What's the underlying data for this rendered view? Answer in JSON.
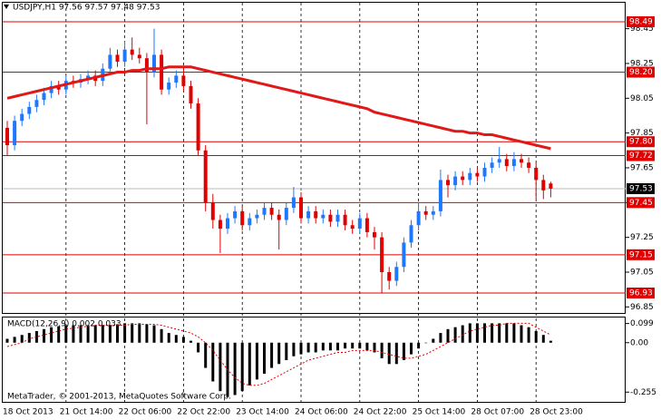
{
  "chart_data": [
    {
      "type": "candlestick",
      "title": "USDJPY,H1  97.56 97.57 97.48 97.53",
      "annotation": "MetaTrader, © 2001-2013, MetaQuotes Software Corp.",
      "categories": [
        "18 Oct 2013",
        null,
        null,
        null,
        null,
        null,
        null,
        null,
        "21 Oct 14:00",
        null,
        null,
        null,
        null,
        null,
        null,
        null,
        "22 Oct 06:00",
        null,
        null,
        null,
        null,
        null,
        null,
        null,
        "22 Oct 22:00",
        null,
        null,
        null,
        null,
        null,
        null,
        null,
        "23 Oct 14:00",
        null,
        null,
        null,
        null,
        null,
        null,
        null,
        "24 Oct 06:00",
        null,
        null,
        null,
        null,
        null,
        null,
        null,
        "24 Oct 22:00",
        null,
        null,
        null,
        null,
        null,
        null,
        null,
        "25 Oct 14:00",
        null,
        null,
        null,
        null,
        null,
        null,
        null,
        "28 Oct 07:00",
        null,
        null,
        null,
        null,
        null,
        null,
        null,
        "28 Oct 23:00",
        null,
        null
      ],
      "ohlc": [
        [
          97.88,
          97.92,
          97.72,
          97.78
        ],
        [
          97.78,
          97.95,
          97.75,
          97.92
        ],
        [
          97.92,
          97.99,
          97.89,
          97.96
        ],
        [
          97.96,
          98.03,
          97.93,
          98.0
        ],
        [
          98.0,
          98.07,
          97.97,
          98.04
        ],
        [
          98.04,
          98.11,
          98.01,
          98.08
        ],
        [
          98.08,
          98.15,
          98.05,
          98.12
        ],
        [
          98.12,
          98.15,
          98.07,
          98.1
        ],
        [
          98.1,
          98.18,
          98.07,
          98.15
        ],
        [
          98.15,
          98.18,
          98.11,
          98.14
        ],
        [
          98.14,
          98.19,
          98.11,
          98.16
        ],
        [
          98.16,
          98.21,
          98.13,
          98.18
        ],
        [
          98.18,
          98.21,
          98.12,
          98.15
        ],
        [
          98.15,
          98.25,
          98.12,
          98.22
        ],
        [
          98.22,
          98.34,
          98.19,
          98.3
        ],
        [
          98.3,
          98.33,
          98.23,
          98.26
        ],
        [
          98.26,
          98.38,
          98.23,
          98.33
        ],
        [
          98.33,
          98.4,
          98.27,
          98.3
        ],
        [
          98.3,
          98.34,
          98.25,
          98.28
        ],
        [
          98.28,
          98.31,
          97.9,
          98.2
        ],
        [
          98.2,
          98.45,
          98.17,
          98.3
        ],
        [
          98.3,
          98.33,
          98.07,
          98.1
        ],
        [
          98.1,
          98.17,
          98.07,
          98.14
        ],
        [
          98.14,
          98.21,
          98.11,
          98.18
        ],
        [
          98.18,
          98.22,
          98.09,
          98.12
        ],
        [
          98.12,
          98.15,
          97.99,
          98.02
        ],
        [
          98.02,
          98.05,
          97.72,
          97.75
        ],
        [
          97.75,
          97.78,
          97.4,
          97.45
        ],
        [
          97.45,
          97.5,
          97.3,
          97.35
        ],
        [
          97.35,
          97.38,
          97.16,
          97.3
        ],
        [
          97.3,
          97.39,
          97.27,
          97.36
        ],
        [
          97.36,
          97.43,
          97.33,
          97.4
        ],
        [
          97.4,
          97.43,
          97.29,
          97.32
        ],
        [
          97.32,
          97.39,
          97.29,
          97.36
        ],
        [
          97.36,
          97.41,
          97.33,
          97.38
        ],
        [
          97.38,
          97.45,
          97.35,
          97.42
        ],
        [
          97.42,
          97.45,
          97.35,
          97.38
        ],
        [
          97.38,
          97.41,
          97.18,
          97.35
        ],
        [
          97.35,
          97.45,
          97.32,
          97.42
        ],
        [
          97.42,
          97.54,
          97.39,
          97.48
        ],
        [
          97.48,
          97.51,
          97.33,
          97.36
        ],
        [
          97.36,
          97.43,
          97.33,
          97.4
        ],
        [
          97.4,
          97.43,
          97.33,
          97.36
        ],
        [
          97.36,
          97.41,
          97.33,
          97.38
        ],
        [
          97.38,
          97.41,
          97.31,
          97.34
        ],
        [
          97.34,
          97.41,
          97.31,
          97.38
        ],
        [
          97.38,
          97.41,
          97.29,
          97.32
        ],
        [
          97.32,
          97.35,
          97.27,
          97.3
        ],
        [
          97.3,
          97.39,
          97.27,
          97.36
        ],
        [
          97.36,
          97.39,
          97.25,
          97.28
        ],
        [
          97.28,
          97.31,
          97.18,
          97.25
        ],
        [
          97.25,
          97.28,
          96.93,
          97.05
        ],
        [
          97.05,
          97.08,
          96.95,
          97.0
        ],
        [
          97.0,
          97.11,
          96.97,
          97.08
        ],
        [
          97.08,
          97.25,
          97.05,
          97.22
        ],
        [
          97.22,
          97.35,
          97.19,
          97.32
        ],
        [
          97.32,
          97.45,
          97.29,
          97.4
        ],
        [
          97.4,
          97.43,
          97.35,
          97.38
        ],
        [
          97.38,
          97.43,
          97.35,
          97.4
        ],
        [
          97.4,
          97.64,
          97.37,
          97.58
        ],
        [
          97.58,
          97.61,
          97.48,
          97.55
        ],
        [
          97.55,
          97.63,
          97.52,
          97.6
        ],
        [
          97.6,
          97.63,
          97.55,
          97.58
        ],
        [
          97.58,
          97.65,
          97.55,
          97.62
        ],
        [
          97.62,
          97.65,
          97.57,
          97.6
        ],
        [
          97.6,
          97.68,
          97.57,
          97.65
        ],
        [
          97.65,
          97.71,
          97.62,
          97.68
        ],
        [
          97.68,
          97.77,
          97.65,
          97.7
        ],
        [
          97.7,
          97.73,
          97.63,
          97.66
        ],
        [
          97.66,
          97.74,
          97.63,
          97.7
        ],
        [
          97.7,
          97.73,
          97.65,
          97.68
        ],
        [
          97.68,
          97.71,
          97.62,
          97.65
        ],
        [
          97.65,
          97.68,
          97.47,
          97.58
        ],
        [
          97.58,
          97.61,
          97.47,
          97.52
        ],
        [
          97.56,
          97.57,
          97.48,
          97.53
        ]
      ],
      "up_color": "#1e78ff",
      "down_color": "#e00000",
      "ma": {
        "color": "#e01818",
        "values": [
          98.05,
          98.06,
          98.07,
          98.08,
          98.09,
          98.1,
          98.11,
          98.12,
          98.13,
          98.14,
          98.15,
          98.16,
          98.17,
          98.18,
          98.19,
          98.2,
          98.2,
          98.21,
          98.21,
          98.22,
          98.22,
          98.22,
          98.23,
          98.23,
          98.23,
          98.23,
          98.22,
          98.21,
          98.2,
          98.19,
          98.18,
          98.17,
          98.16,
          98.15,
          98.14,
          98.13,
          98.12,
          98.11,
          98.1,
          98.09,
          98.08,
          98.07,
          98.06,
          98.05,
          98.04,
          98.03,
          98.02,
          98.01,
          98.0,
          97.99,
          97.97,
          97.96,
          97.95,
          97.94,
          97.93,
          97.92,
          97.91,
          97.9,
          97.89,
          97.88,
          97.87,
          97.86,
          97.86,
          97.85,
          97.85,
          97.84,
          97.84,
          97.83,
          97.82,
          97.81,
          97.8,
          97.79,
          97.78,
          97.77,
          97.76
        ]
      },
      "ylim": [
        96.81,
        98.615
      ],
      "yticks": [
        98.45,
        98.25,
        98.05,
        97.85,
        97.65,
        97.45,
        97.25,
        97.05,
        96.85
      ],
      "hlines": [
        {
          "value": 98.49,
          "label": "98.49"
        },
        {
          "value": 98.2,
          "label": "98.20"
        },
        {
          "value": 97.8,
          "label": "97.80"
        },
        {
          "value": 97.72,
          "label": "97.72"
        },
        {
          "value": 97.45,
          "label": "97.45"
        },
        {
          "value": 97.15,
          "label": "97.15"
        },
        {
          "value": 96.93,
          "label": "96.93"
        }
      ],
      "hline_color": "#e00000",
      "current_price": 97.53
    },
    {
      "type": "macd",
      "title": "MACD(12,26,9) 0.002 0.033",
      "values": [
        0.02,
        0.03,
        0.04,
        0.05,
        0.06,
        0.07,
        0.08,
        0.085,
        0.09,
        0.09,
        0.09,
        0.09,
        0.09,
        0.09,
        0.09,
        0.095,
        0.1,
        0.1,
        0.1,
        0.095,
        0.09,
        0.07,
        0.05,
        0.04,
        0.03,
        0.01,
        -0.05,
        -0.13,
        -0.2,
        -0.25,
        -0.28,
        -0.27,
        -0.25,
        -0.22,
        -0.19,
        -0.16,
        -0.13,
        -0.11,
        -0.09,
        -0.07,
        -0.06,
        -0.05,
        -0.05,
        -0.04,
        -0.04,
        -0.04,
        -0.03,
        -0.03,
        -0.03,
        -0.04,
        -0.05,
        -0.08,
        -0.11,
        -0.11,
        -0.09,
        -0.06,
        -0.03,
        0,
        0.02,
        0.05,
        0.07,
        0.08,
        0.09,
        0.1,
        0.1,
        0.1,
        0.1,
        0.1,
        0.1,
        0.1,
        0.09,
        0.08,
        0.06,
        0.04,
        0.01
      ],
      "signal": [
        -0.02,
        -0.01,
        0.0,
        0.02,
        0.03,
        0.04,
        0.05,
        0.06,
        0.07,
        0.075,
        0.08,
        0.085,
        0.09,
        0.09,
        0.09,
        0.09,
        0.09,
        0.095,
        0.095,
        0.095,
        0.095,
        0.09,
        0.08,
        0.07,
        0.06,
        0.05,
        0.03,
        0.0,
        -0.04,
        -0.09,
        -0.14,
        -0.18,
        -0.21,
        -0.22,
        -0.22,
        -0.21,
        -0.19,
        -0.17,
        -0.15,
        -0.13,
        -0.11,
        -0.09,
        -0.08,
        -0.07,
        -0.06,
        -0.05,
        -0.05,
        -0.04,
        -0.04,
        -0.04,
        -0.04,
        -0.05,
        -0.06,
        -0.07,
        -0.08,
        -0.08,
        -0.07,
        -0.06,
        -0.04,
        -0.02,
        0.0,
        0.02,
        0.04,
        0.06,
        0.07,
        0.08,
        0.09,
        0.09,
        0.1,
        0.1,
        0.1,
        0.1,
        0.08,
        0.06,
        0.04
      ],
      "color": "#000000",
      "signal_color": "#e00000",
      "ylim": [
        -0.31,
        0.13
      ],
      "yticks": [
        0.099,
        {
          "value": 0,
          "label": "0.00"
        },
        -0.255
      ]
    }
  ]
}
